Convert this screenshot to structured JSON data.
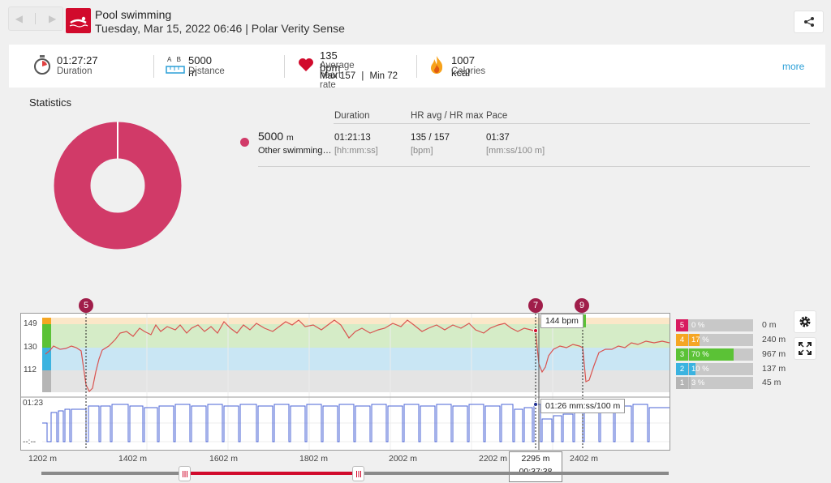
{
  "header": {
    "title": "Pool swimming",
    "subtitle": "Tuesday, Mar 15, 2022 06:46 | Polar Verity Sense"
  },
  "summary": {
    "duration_value": "01:27:27",
    "duration_label": "Duration",
    "distance_ab": "A   B",
    "distance_value": "5000 m",
    "distance_label": "Distance",
    "hr_value": "135 bpm",
    "hr_label": "Average heart rate",
    "hr_max": "Max 157",
    "hr_sep": "|",
    "hr_min": "Min 72",
    "calories_value": "1007 kcal",
    "calories_label": "Calories",
    "more_link": "more"
  },
  "statistics": {
    "title": "Statistics",
    "columns": [
      "Duration",
      "HR avg / HR max",
      "Pace"
    ],
    "row": {
      "distance": "5000",
      "distance_unit": "m",
      "sport": "Other swimming…",
      "duration": "01:21:13",
      "duration_unit": "[hh:mm:ss]",
      "hr": "135 / 157",
      "hr_unit": "[bpm]",
      "pace": "01:37",
      "pace_unit": "[mm:ss/100 m]"
    },
    "donut_color": "#d13a68"
  },
  "chart": {
    "hr_ticks": [
      "149",
      "130",
      "112"
    ],
    "pace_ticks": [
      "01:23",
      "--:--"
    ],
    "x_ticks": [
      "1202 m",
      "1402 m",
      "1602 m",
      "1802 m",
      "2002 m",
      "2202 m",
      "2402 m"
    ],
    "markers": [
      "5",
      "7",
      "9"
    ],
    "hr_tooltip": "144 bpm",
    "pace_tooltip": "01:26 mm:ss/100 m",
    "cursor_distance": "2295 m",
    "cursor_time": "00:37:38",
    "zones": [
      {
        "num": "5",
        "pct": "0 %",
        "value": 0,
        "dist": "0 m",
        "color": "#d81b60"
      },
      {
        "num": "4",
        "pct": "17 %",
        "value": 17,
        "dist": "240 m",
        "color": "#f5a623"
      },
      {
        "num": "3",
        "pct": "70 %",
        "value": 70,
        "dist": "967 m",
        "color": "#5bc236"
      },
      {
        "num": "2",
        "pct": "10 %",
        "value": 10,
        "dist": "137 m",
        "color": "#3bb3e0"
      },
      {
        "num": "1",
        "pct": "3 %",
        "value": 3,
        "dist": "45 m",
        "color": "#b5b5b5"
      }
    ]
  },
  "icons": {
    "back": "chevron-left-icon",
    "forward": "chevron-right-icon",
    "share": "share-icon",
    "stopwatch": "stopwatch-icon",
    "distance": "ruler-icon",
    "heart": "heart-icon",
    "calories": "flame-icon",
    "settings": "gear-icon",
    "expand": "expand-icon"
  }
}
